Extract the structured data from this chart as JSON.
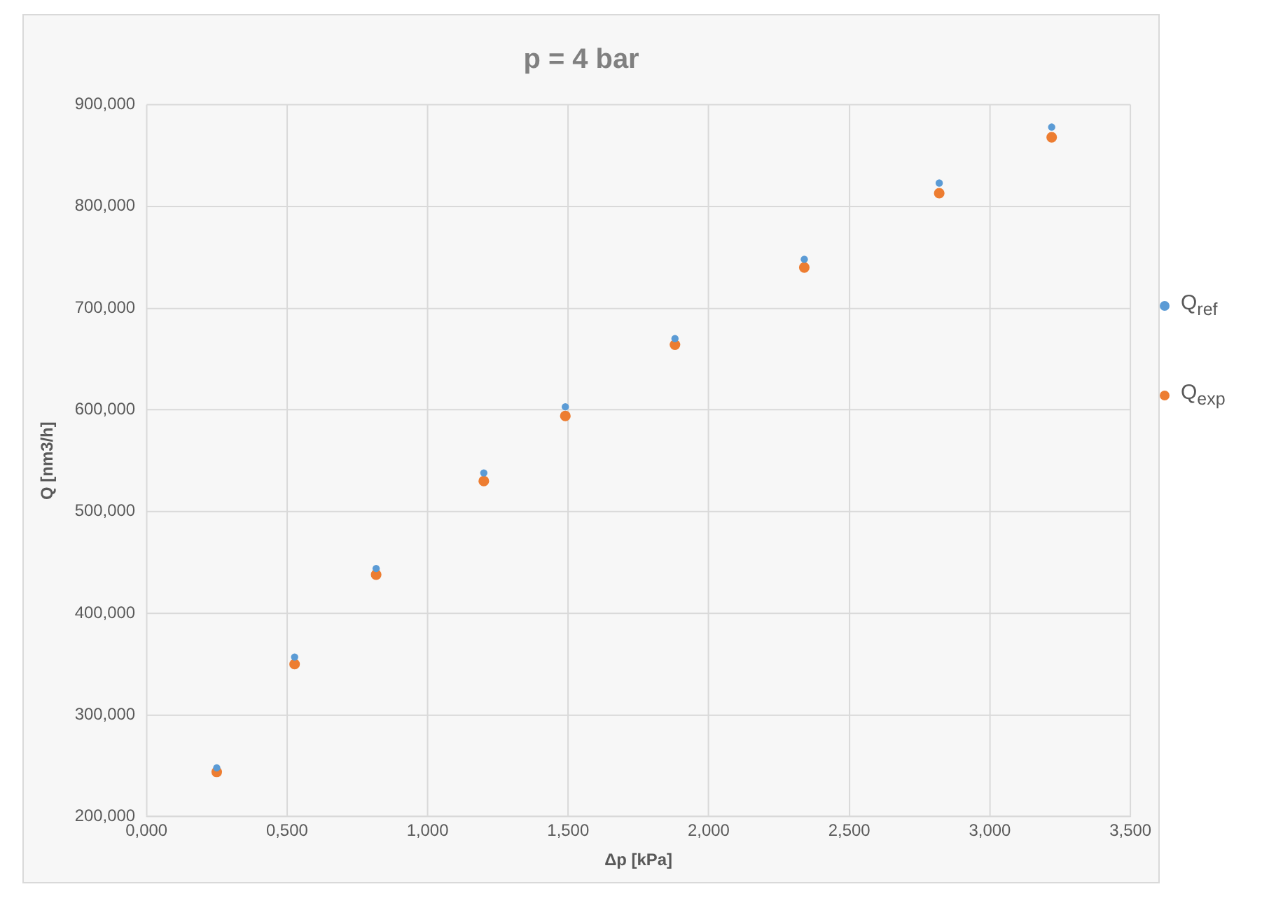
{
  "chart_data": {
    "type": "scatter",
    "title": "p = 4 bar",
    "xlabel": "Δp [kPa]",
    "ylabel": "Q [nm3/h]",
    "x": [
      0.25,
      0.527,
      0.817,
      1.2,
      1.49,
      1.88,
      2.34,
      2.82,
      3.22
    ],
    "series": [
      {
        "name": "Q$_{ref}$",
        "color": "#5b9bd5",
        "values": [
          248,
          357,
          444,
          538,
          603,
          670,
          748,
          823,
          878
        ]
      },
      {
        "name": "Q$_{exp}$",
        "color": "#ed7d31",
        "values": [
          244,
          350,
          438,
          530,
          594,
          664,
          740,
          813,
          868
        ]
      }
    ],
    "xlim": [
      0,
      3.5
    ],
    "xticks": [
      {
        "value": 0,
        "label": "0,000"
      },
      {
        "value": 0.5,
        "label": "0,500"
      },
      {
        "value": 1,
        "label": "1,000"
      },
      {
        "value": 1.5,
        "label": "1,500"
      },
      {
        "value": 2,
        "label": "2,000"
      },
      {
        "value": 2.5,
        "label": "2,500"
      },
      {
        "value": 3,
        "label": "3,000"
      },
      {
        "value": 3.5,
        "label": "3,500"
      }
    ],
    "ylim": [
      200,
      900
    ],
    "yticks": [
      {
        "value": 200,
        "label": "200,000"
      },
      {
        "value": 300,
        "label": "300,000"
      },
      {
        "value": 400,
        "label": "400,000"
      },
      {
        "value": 500,
        "label": "500,000"
      },
      {
        "value": 600,
        "label": "600,000"
      },
      {
        "value": 700,
        "label": "700,000"
      },
      {
        "value": 800,
        "label": "800,000"
      },
      {
        "value": 900,
        "label": "900,000"
      }
    ],
    "grid": true,
    "legend": "right",
    "marker": "circle"
  }
}
